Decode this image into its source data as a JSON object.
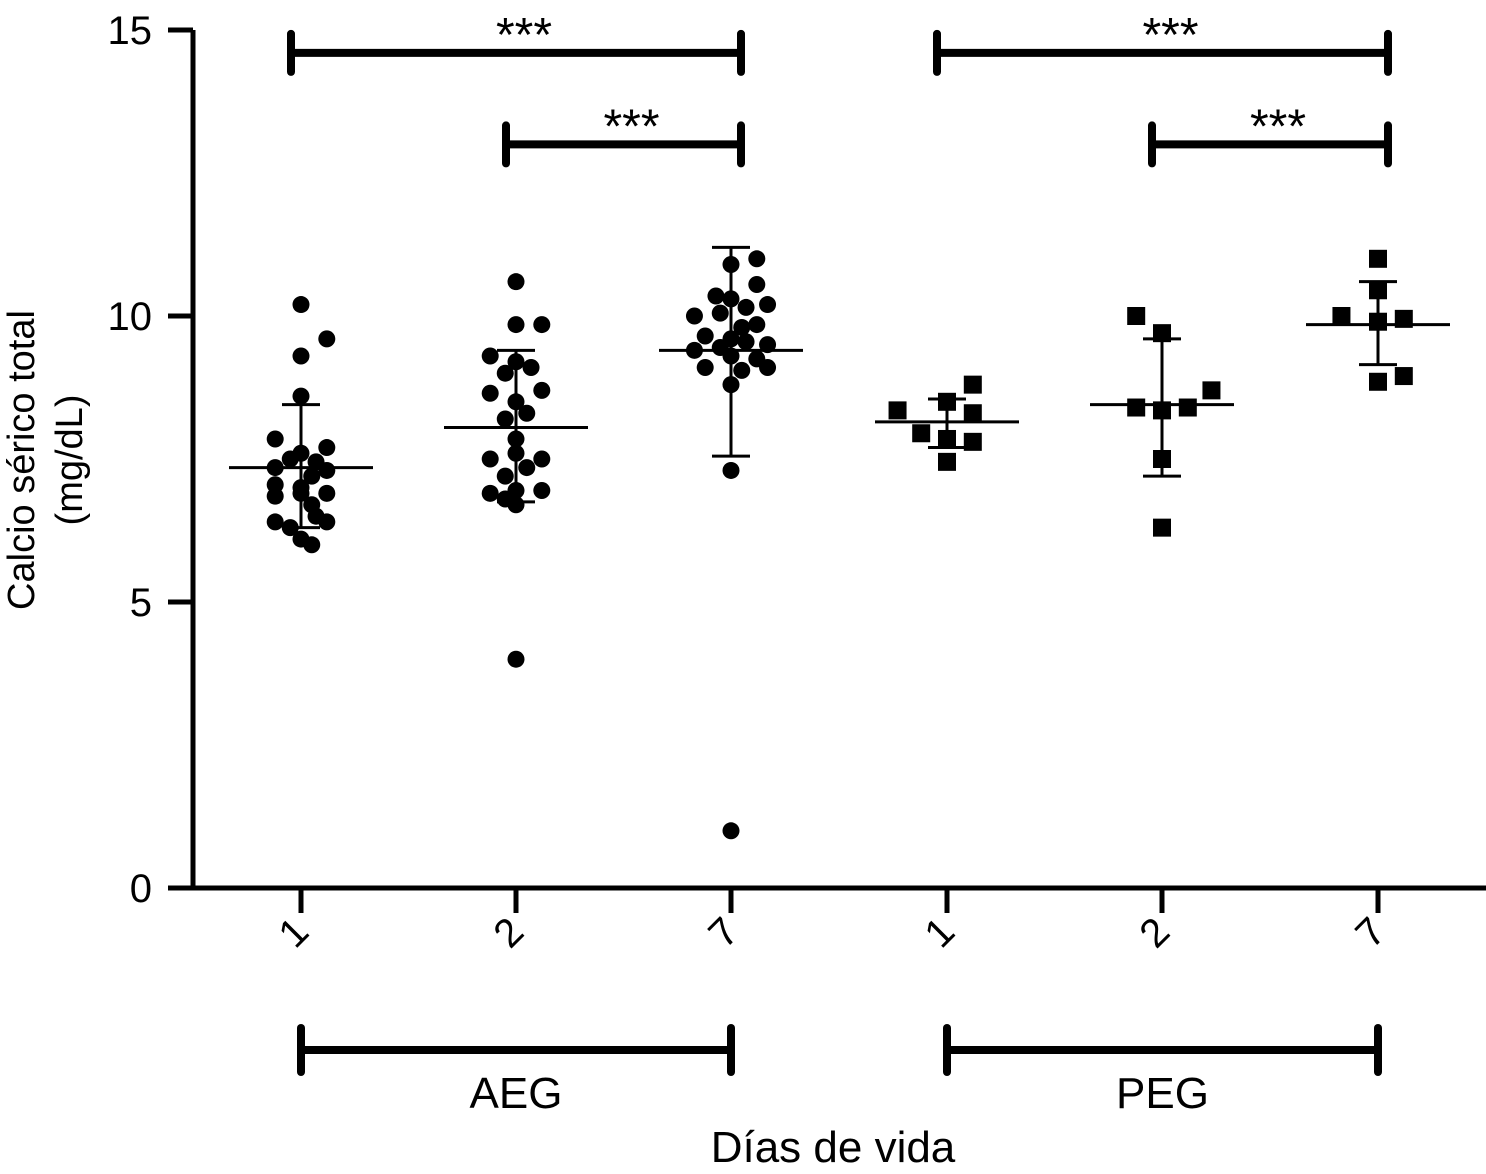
{
  "chart_data": {
    "type": "scatter",
    "title": "",
    "ylabel_line1": "Calcio sérico total",
    "ylabel_line2": "(mg/dL)",
    "xlabel": "Días de vida",
    "ylim": [
      0,
      15
    ],
    "yticks": [
      0,
      5,
      10,
      15
    ],
    "grid": false,
    "categories": [
      "1",
      "2",
      "7",
      "1",
      "2",
      "7"
    ],
    "groups": [
      {
        "name": "AEG",
        "category_indices": [
          0,
          1,
          2
        ]
      },
      {
        "name": "PEG",
        "category_indices": [
          3,
          4,
          5
        ]
      }
    ],
    "series": [
      {
        "name": "AEG",
        "marker": "circle",
        "columns": [
          {
            "category_index": 0,
            "mean": 7.35,
            "upper": 8.45,
            "lower": 6.3,
            "points": [
              [
                -0.12,
                7.85
              ],
              [
                0.0,
                7.6
              ],
              [
                0.07,
                7.45
              ],
              [
                0.12,
                7.7
              ],
              [
                -0.05,
                7.5
              ],
              [
                0.05,
                7.2
              ],
              [
                -0.12,
                7.35
              ],
              [
                0.12,
                6.9
              ],
              [
                -0.12,
                6.85
              ],
              [
                0.0,
                6.9
              ],
              [
                0.07,
                6.5
              ],
              [
                0.12,
                6.4
              ],
              [
                -0.12,
                6.4
              ],
              [
                0.0,
                6.1
              ],
              [
                -0.05,
                6.3
              ],
              [
                0.05,
                6.0
              ],
              [
                0.0,
                7.0
              ],
              [
                0.12,
                7.3
              ],
              [
                -0.12,
                7.05
              ],
              [
                0.0,
                8.6
              ],
              [
                0.0,
                9.3
              ],
              [
                0.12,
                9.6
              ],
              [
                0.0,
                10.2
              ],
              [
                0.05,
                6.7
              ]
            ]
          },
          {
            "category_index": 1,
            "mean": 8.05,
            "upper": 9.4,
            "lower": 6.75,
            "points": [
              [
                0.0,
                10.6
              ],
              [
                0.0,
                9.85
              ],
              [
                0.12,
                9.85
              ],
              [
                -0.12,
                9.3
              ],
              [
                0.0,
                9.2
              ],
              [
                -0.05,
                9.0
              ],
              [
                0.07,
                9.1
              ],
              [
                0.12,
                8.7
              ],
              [
                -0.12,
                8.65
              ],
              [
                0.0,
                8.5
              ],
              [
                -0.05,
                8.2
              ],
              [
                0.05,
                8.3
              ],
              [
                0.0,
                7.85
              ],
              [
                -0.12,
                7.5
              ],
              [
                0.0,
                7.6
              ],
              [
                0.12,
                7.5
              ],
              [
                -0.05,
                7.2
              ],
              [
                0.05,
                7.35
              ],
              [
                0.0,
                6.95
              ],
              [
                -0.12,
                6.9
              ],
              [
                0.12,
                6.95
              ],
              [
                0.0,
                6.7
              ],
              [
                -0.05,
                6.8
              ],
              [
                0.0,
                4.0
              ]
            ]
          },
          {
            "category_index": 2,
            "mean": 9.4,
            "upper": 11.2,
            "lower": 7.55,
            "points": [
              [
                0.12,
                11.0
              ],
              [
                0.0,
                10.9
              ],
              [
                0.12,
                10.55
              ],
              [
                -0.07,
                10.35
              ],
              [
                0.0,
                10.3
              ],
              [
                0.07,
                10.15
              ],
              [
                0.17,
                10.2
              ],
              [
                -0.17,
                10.0
              ],
              [
                -0.05,
                10.05
              ],
              [
                0.05,
                9.8
              ],
              [
                0.12,
                9.85
              ],
              [
                -0.12,
                9.65
              ],
              [
                0.0,
                9.6
              ],
              [
                0.07,
                9.55
              ],
              [
                0.17,
                9.5
              ],
              [
                -0.17,
                9.4
              ],
              [
                -0.05,
                9.45
              ],
              [
                0.0,
                9.3
              ],
              [
                0.12,
                9.25
              ],
              [
                -0.12,
                9.1
              ],
              [
                0.05,
                9.05
              ],
              [
                0.17,
                9.1
              ],
              [
                0.0,
                8.8
              ],
              [
                0.0,
                7.3
              ],
              [
                0.0,
                1.0
              ]
            ]
          }
        ]
      },
      {
        "name": "PEG",
        "marker": "square",
        "columns": [
          {
            "category_index": 3,
            "mean": 8.15,
            "upper": 8.55,
            "lower": 7.7,
            "points": [
              [
                0.12,
                8.8
              ],
              [
                0.0,
                8.5
              ],
              [
                -0.23,
                8.35
              ],
              [
                0.12,
                8.3
              ],
              [
                -0.12,
                7.95
              ],
              [
                0.0,
                7.85
              ],
              [
                0.12,
                7.8
              ],
              [
                0.0,
                7.45
              ]
            ]
          },
          {
            "category_index": 4,
            "mean": 8.45,
            "upper": 9.6,
            "lower": 7.2,
            "points": [
              [
                -0.12,
                10.0
              ],
              [
                0.0,
                9.7
              ],
              [
                0.23,
                8.7
              ],
              [
                -0.12,
                8.4
              ],
              [
                0.0,
                8.35
              ],
              [
                0.12,
                8.4
              ],
              [
                0.0,
                7.5
              ],
              [
                0.0,
                6.3
              ]
            ]
          },
          {
            "category_index": 5,
            "mean": 9.85,
            "upper": 10.6,
            "lower": 9.15,
            "points": [
              [
                0.0,
                11.0
              ],
              [
                0.0,
                10.45
              ],
              [
                -0.17,
                10.0
              ],
              [
                0.0,
                9.9
              ],
              [
                0.12,
                9.95
              ],
              [
                0.0,
                8.85
              ],
              [
                0.12,
                8.95
              ]
            ]
          }
        ]
      }
    ],
    "significance": [
      {
        "label": "***",
        "from_index": 0,
        "to_index": 2,
        "y": 14.6
      },
      {
        "label": "***",
        "from_index": 1,
        "to_index": 2,
        "y": 13.0
      },
      {
        "label": "***",
        "from_index": 3,
        "to_index": 5,
        "y": 14.6
      },
      {
        "label": "***",
        "from_index": 4,
        "to_index": 5,
        "y": 13.0
      }
    ]
  }
}
